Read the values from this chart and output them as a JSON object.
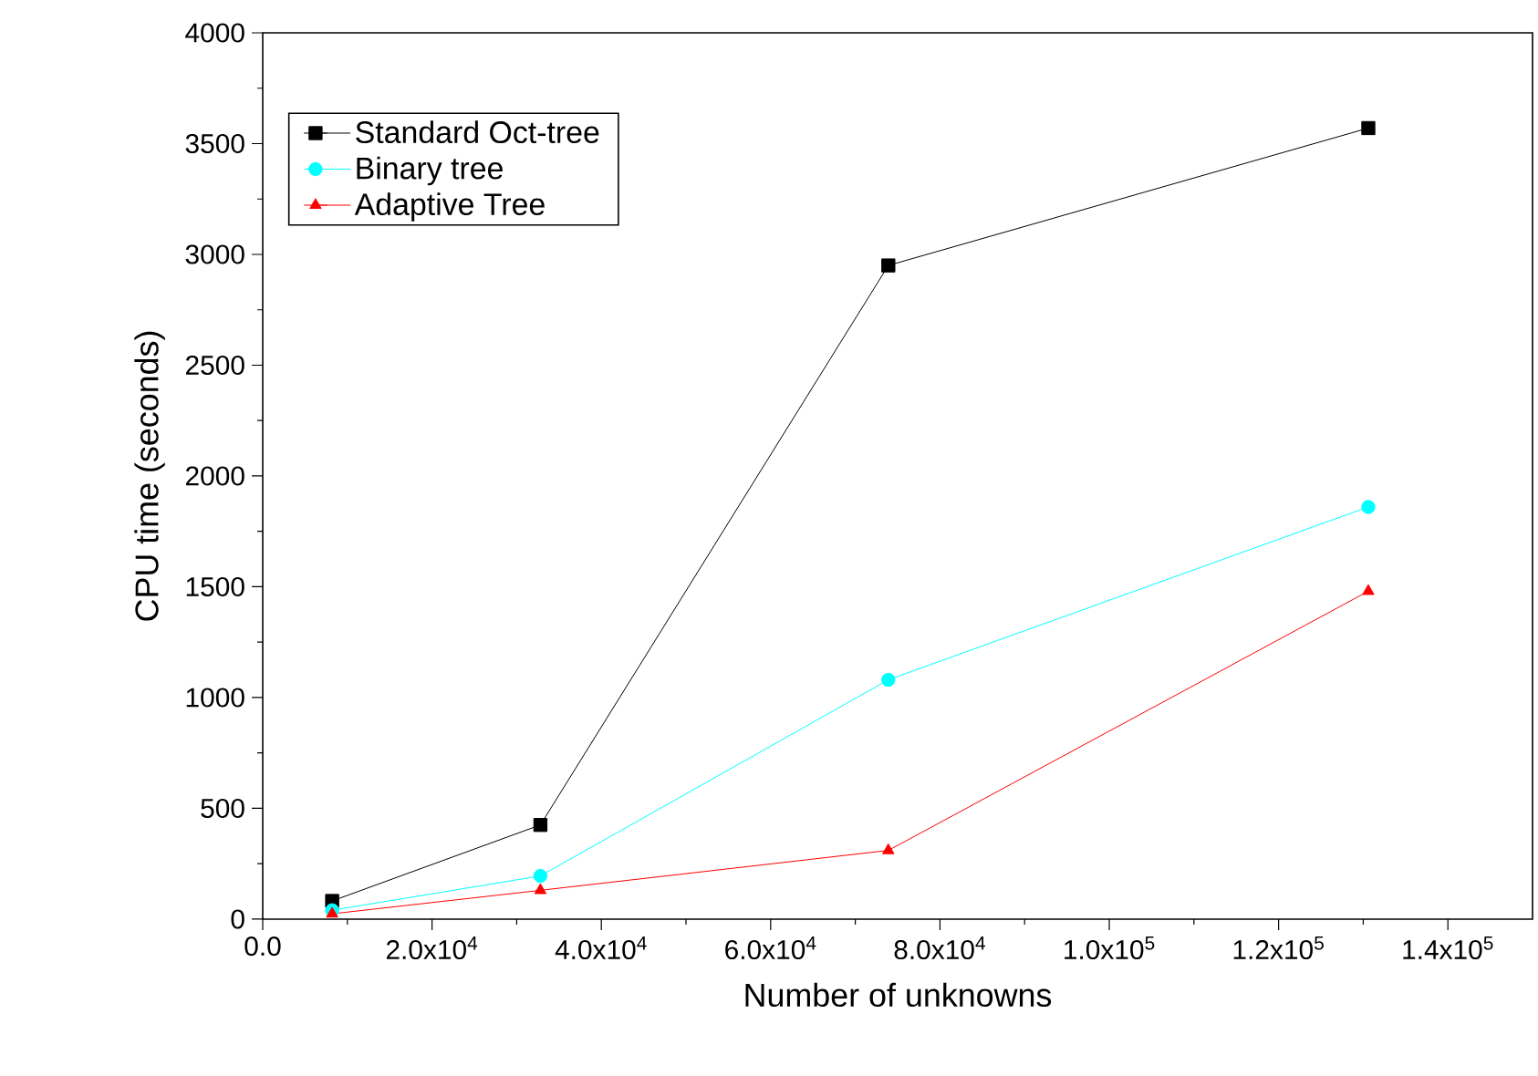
{
  "chart_data": {
    "type": "line",
    "xlabel": "Number of unknowns",
    "ylabel": "CPU time (seconds)",
    "x": [
      8200,
      32800,
      73900,
      130600
    ],
    "series": [
      {
        "name": "Standard Oct-tree",
        "color": "#000000",
        "marker": "square",
        "values": [
          82,
          425,
          2950,
          3570
        ]
      },
      {
        "name": "Binary tree",
        "color": "#00ffff",
        "marker": "circle",
        "values": [
          40,
          195,
          1080,
          1860
        ]
      },
      {
        "name": "Adaptive Tree",
        "color": "#ff0000",
        "marker": "triangle",
        "values": [
          24,
          130,
          310,
          1480
        ]
      }
    ],
    "xlim": [
      0,
      150000
    ],
    "ylim": [
      0,
      4000
    ],
    "xticks": [
      {
        "value": 0,
        "label": "0.0"
      },
      {
        "value": 20000,
        "label": "2.0x10$^{4}$"
      },
      {
        "value": 40000,
        "label": "4.0x10$^{4}$"
      },
      {
        "value": 60000,
        "label": "6.0x10$^{4}$"
      },
      {
        "value": 80000,
        "label": "8.0x10$^{4}$"
      },
      {
        "value": 100000,
        "label": "1.0x10$^{5}$"
      },
      {
        "value": 120000,
        "label": "1.2x10$^{5}$"
      },
      {
        "value": 140000,
        "label": "1.4x10$^{5}$"
      }
    ],
    "yticks": [
      0,
      500,
      1000,
      1500,
      2000,
      2500,
      3000,
      3500,
      4000
    ],
    "legend": "top left",
    "grid": false,
    "line_style": "solid"
  }
}
